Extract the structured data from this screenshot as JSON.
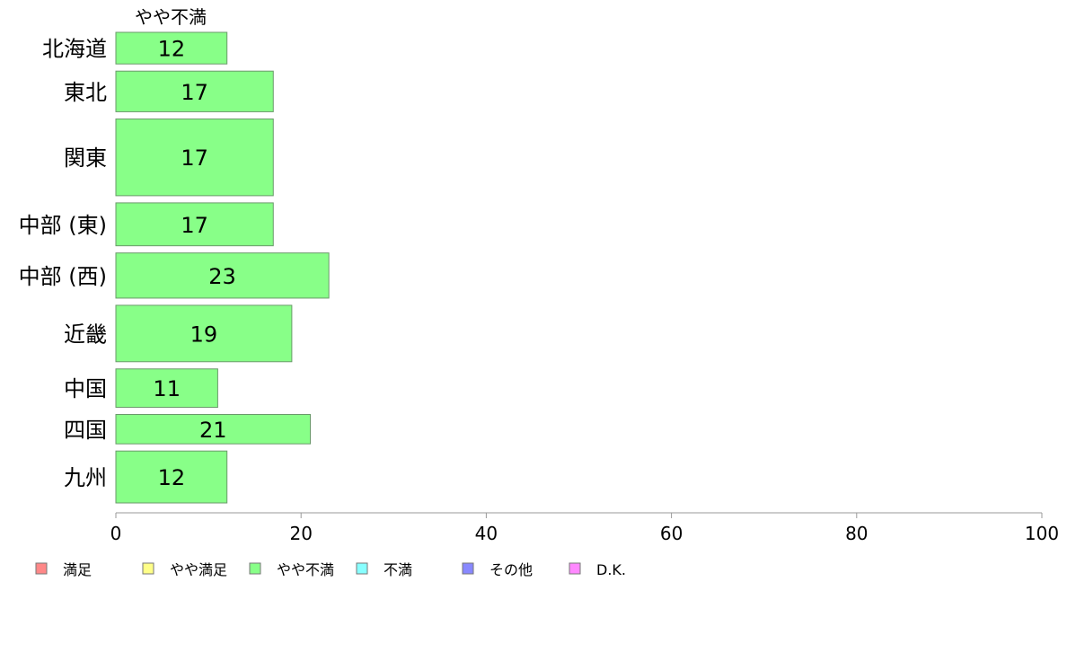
{
  "chart_data": {
    "type": "bar",
    "orientation": "horizontal",
    "title": "",
    "xlabel": "",
    "ylabel": "",
    "series_header": "やや不満",
    "categories": [
      "北海道",
      "東北",
      "関東",
      "中部 (東)",
      "中部 (西)",
      "近畿",
      "中国",
      "四国",
      "九州"
    ],
    "series": [
      {
        "name": "やや不満",
        "values": [
          12,
          17,
          17,
          17,
          23,
          19,
          11,
          21,
          12
        ],
        "color": "#88ff88"
      }
    ],
    "bar_thickness": [
      0.07,
      0.09,
      0.17,
      0.095,
      0.1,
      0.125,
      0.085,
      0.065,
      0.115
    ],
    "xlim": [
      0,
      100
    ],
    "xticks": [
      0,
      20,
      40,
      60,
      80,
      100
    ],
    "grid": false,
    "legend": {
      "placement": "bottom",
      "items": [
        {
          "label": "満足",
          "color": "#ff8888"
        },
        {
          "label": "やや満足",
          "color": "#ffff88"
        },
        {
          "label": "やや不満",
          "color": "#88ff88"
        },
        {
          "label": "不満",
          "color": "#88ffff"
        },
        {
          "label": "その他",
          "color": "#8888ff"
        },
        {
          "label": "D.K.",
          "color": "#ff88ff"
        }
      ]
    }
  }
}
